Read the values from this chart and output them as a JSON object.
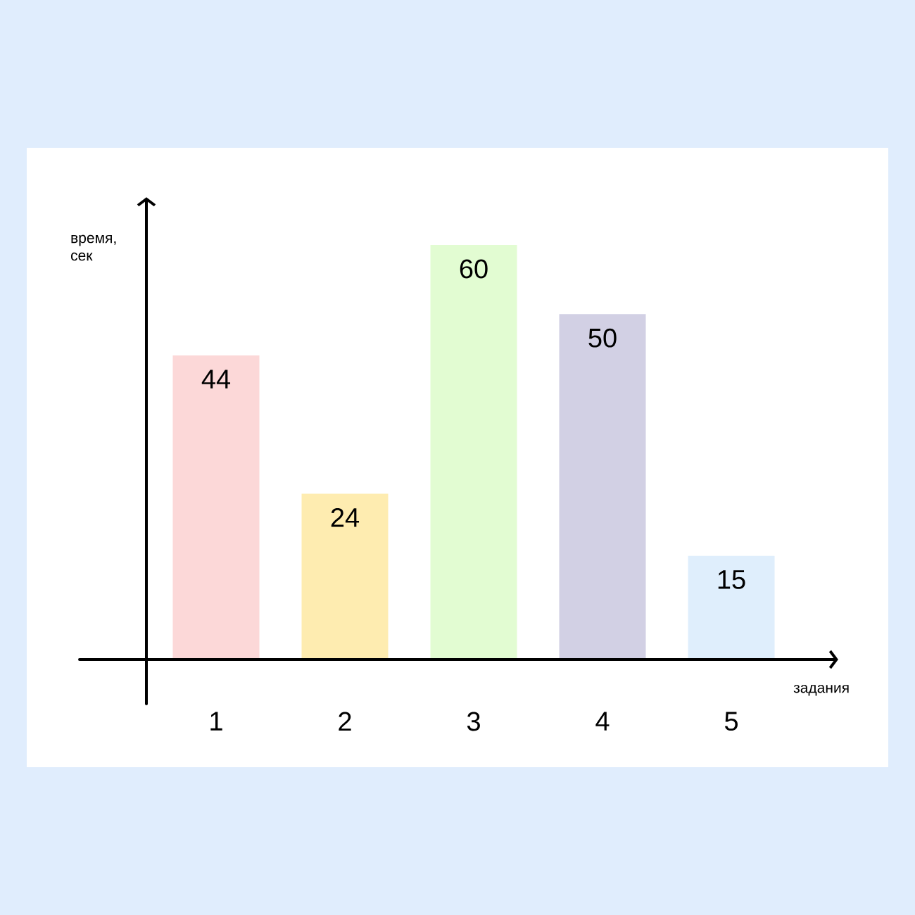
{
  "chart_data": {
    "type": "bar",
    "xlabel": "задания",
    "ylabel": "время, сек",
    "categories": [
      "1",
      "2",
      "3",
      "4",
      "5"
    ],
    "values": [
      44,
      24,
      60,
      50,
      15
    ],
    "colors": [
      "#fcd8d8",
      "#feecb0",
      "#e2fcd2",
      "#d2d0e4",
      "#dfeefc"
    ],
    "data_labels": true,
    "grid": false
  }
}
